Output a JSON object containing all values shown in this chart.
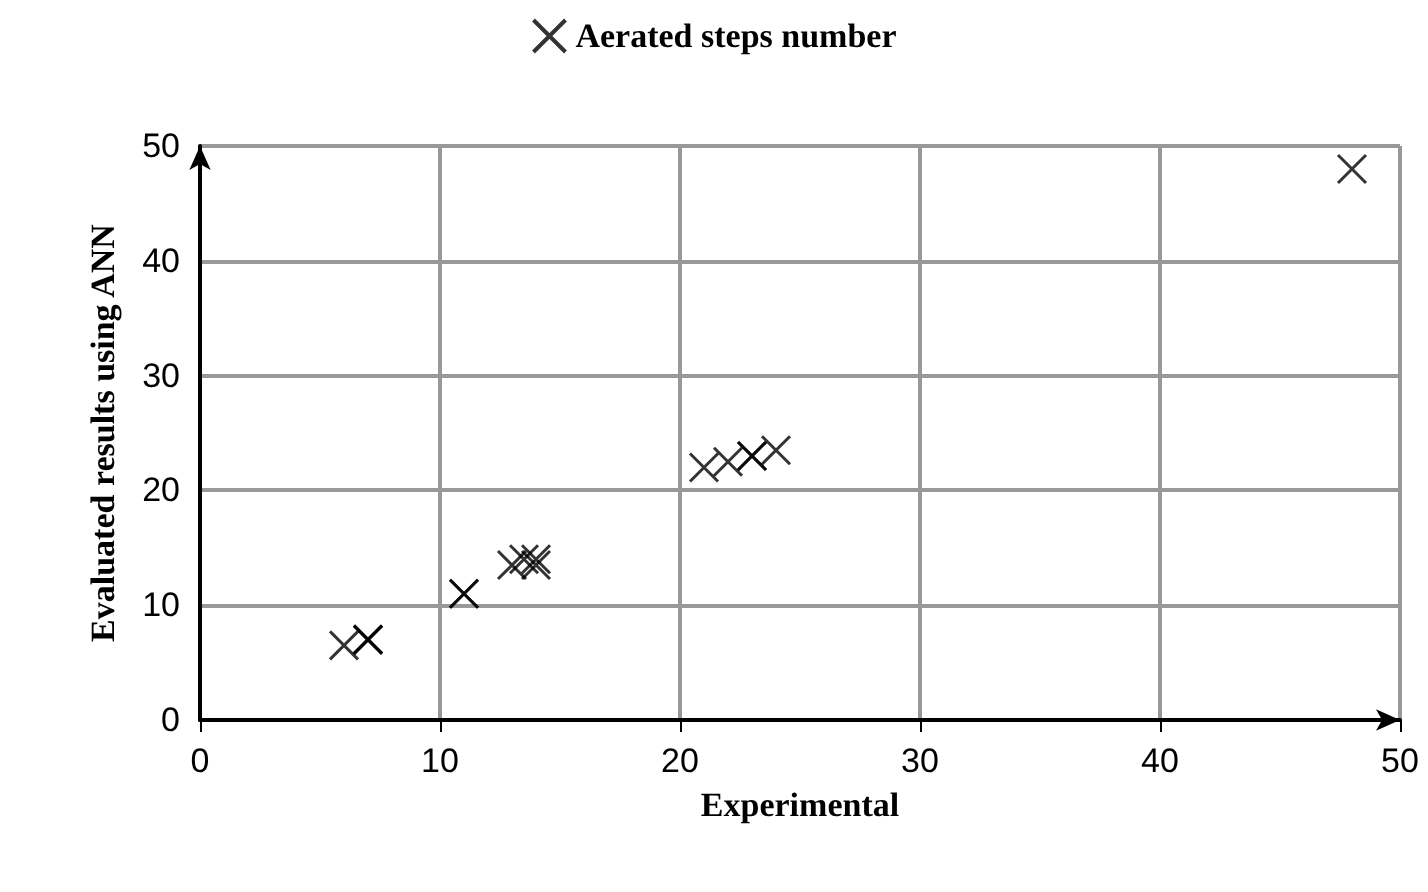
{
  "chart_data": {
    "type": "scatter",
    "xlabel": "Experimental",
    "ylabel": "Evaluated results using ANN",
    "series": [
      {
        "name": "Aerated steps number",
        "color": "#000000",
        "x": [
          6,
          7,
          7,
          7,
          11,
          11,
          13,
          13.5,
          14,
          14,
          21,
          22,
          23,
          23,
          24,
          48
        ],
        "values": [
          6.5,
          7,
          7,
          7,
          11,
          11,
          13.5,
          14,
          13.5,
          14,
          22,
          22.5,
          23,
          23,
          23.5,
          48
        ]
      }
    ],
    "xlim": [
      0,
      50
    ],
    "xticks": [
      0,
      10,
      20,
      30,
      40,
      50
    ],
    "ylim": [
      0,
      50
    ],
    "yticks": [
      0,
      10,
      20,
      30,
      40,
      50
    ],
    "grid": true,
    "legend": "top",
    "marker": "cross"
  }
}
